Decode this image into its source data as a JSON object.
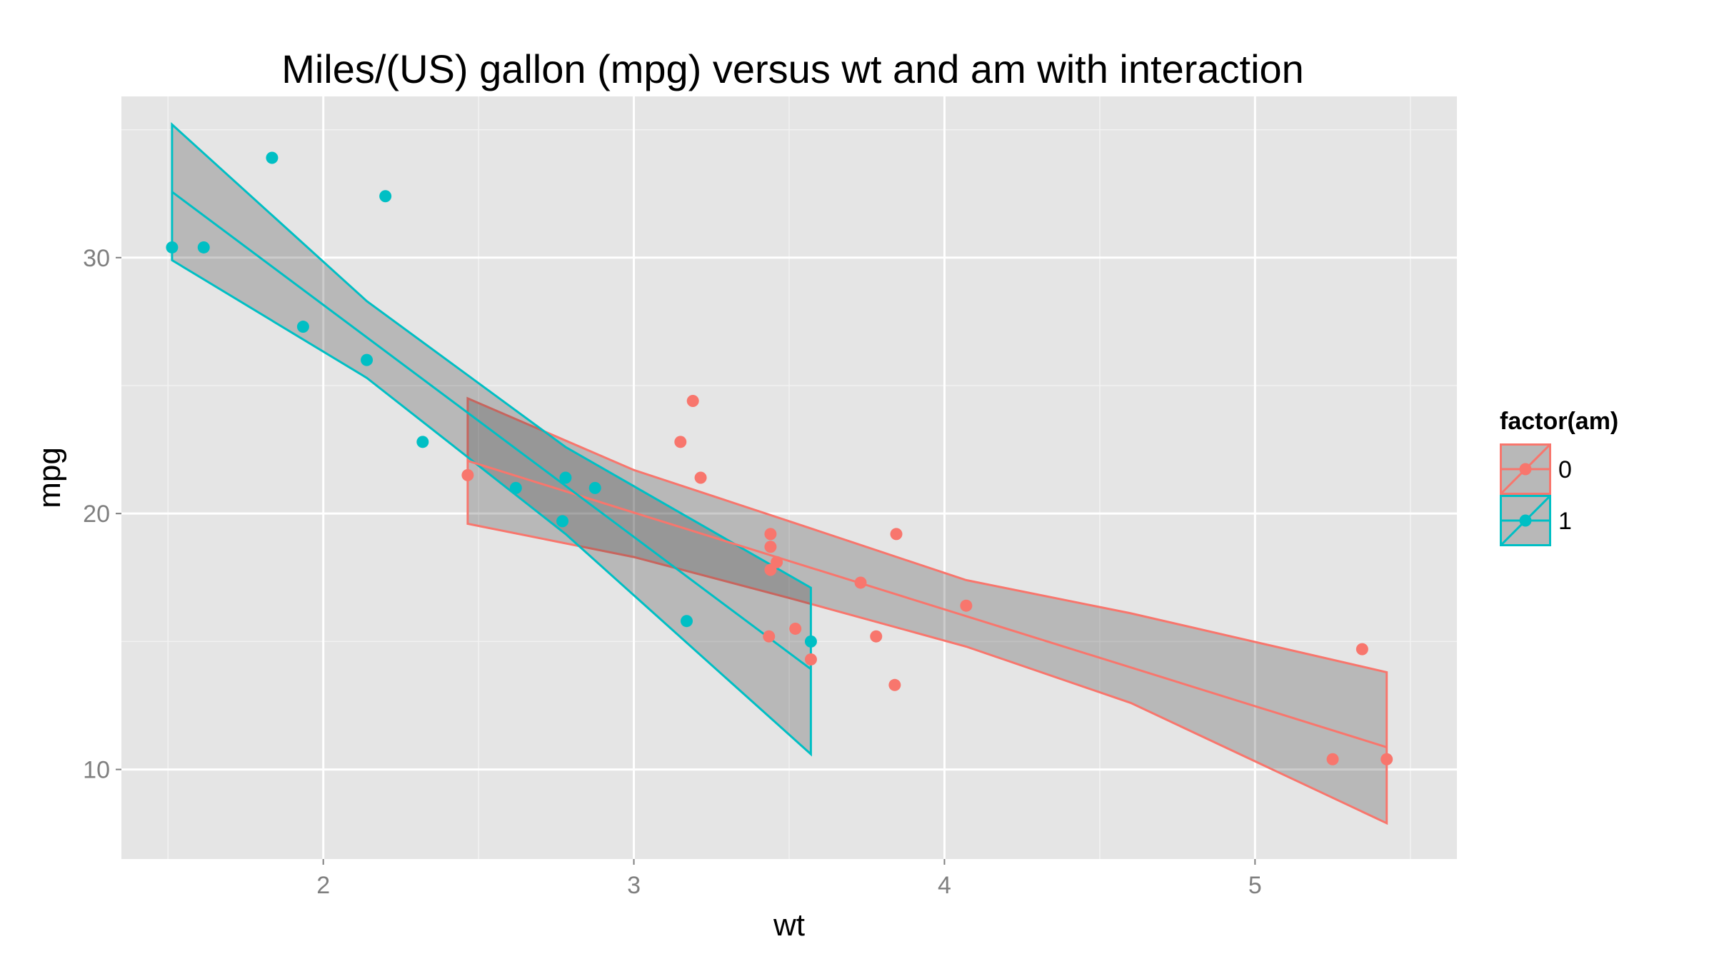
{
  "chart_data": {
    "type": "scatter",
    "title": "Miles/(US) gallon (mpg) versus wt and am with interaction",
    "xlabel": "wt",
    "ylabel": "mpg",
    "xlim": [
      1.35,
      5.65
    ],
    "ylim": [
      6.5,
      36.3
    ],
    "xticks": [
      2,
      3,
      4,
      5
    ],
    "yticks": [
      10,
      20,
      30
    ],
    "grid": true,
    "legend": {
      "title": "factor(am)",
      "position": "right",
      "entries": [
        "0",
        "1"
      ]
    },
    "colors": {
      "panel_bg": "#e5e5e5",
      "grid_major": "#ffffff",
      "grid_minor": "#f2f2f2",
      "band_fill": "#333333",
      "series_0": "#f8766d",
      "series_1": "#00bfc4"
    },
    "series": [
      {
        "name": "0",
        "color": "#f8766d",
        "points": [
          [
            3.215,
            21.4
          ],
          [
            3.44,
            18.7
          ],
          [
            3.46,
            18.1
          ],
          [
            3.57,
            14.3
          ],
          [
            3.19,
            24.4
          ],
          [
            3.15,
            22.8
          ],
          [
            3.44,
            19.2
          ],
          [
            3.44,
            17.8
          ],
          [
            4.07,
            16.4
          ],
          [
            3.73,
            17.3
          ],
          [
            3.78,
            15.2
          ],
          [
            5.25,
            10.4
          ],
          [
            5.424,
            10.4
          ],
          [
            5.345,
            14.7
          ],
          [
            2.465,
            21.5
          ],
          [
            3.52,
            15.5
          ],
          [
            3.435,
            15.2
          ],
          [
            3.84,
            13.3
          ],
          [
            3.845,
            19.2
          ]
        ],
        "fit": {
          "x": [
            2.465,
            5.424
          ],
          "y": [
            22.06,
            10.87
          ]
        },
        "band": {
          "x": [
            2.465,
            3.0,
            3.5,
            4.07,
            4.6,
            5.424
          ],
          "upper": [
            24.5,
            21.7,
            19.7,
            17.4,
            16.1,
            13.8
          ],
          "lower": [
            19.6,
            18.3,
            16.7,
            14.8,
            12.6,
            7.9
          ]
        }
      },
      {
        "name": "1",
        "color": "#00bfc4",
        "points": [
          [
            2.62,
            21.0
          ],
          [
            2.875,
            21.0
          ],
          [
            2.32,
            22.8
          ],
          [
            2.2,
            32.4
          ],
          [
            1.615,
            30.4
          ],
          [
            1.835,
            33.9
          ],
          [
            1.935,
            27.3
          ],
          [
            2.14,
            26.0
          ],
          [
            1.513,
            30.4
          ],
          [
            3.17,
            15.8
          ],
          [
            2.77,
            19.7
          ],
          [
            2.78,
            21.4
          ],
          [
            3.57,
            15.0
          ]
        ],
        "fit": {
          "x": [
            1.513,
            3.57
          ],
          "y": [
            32.57,
            13.92
          ]
        },
        "band": {
          "x": [
            1.513,
            2.14,
            2.78,
            3.57
          ],
          "upper": [
            35.2,
            28.3,
            22.6,
            17.1
          ],
          "lower": [
            29.9,
            25.3,
            19.2,
            10.6
          ]
        }
      }
    ]
  }
}
